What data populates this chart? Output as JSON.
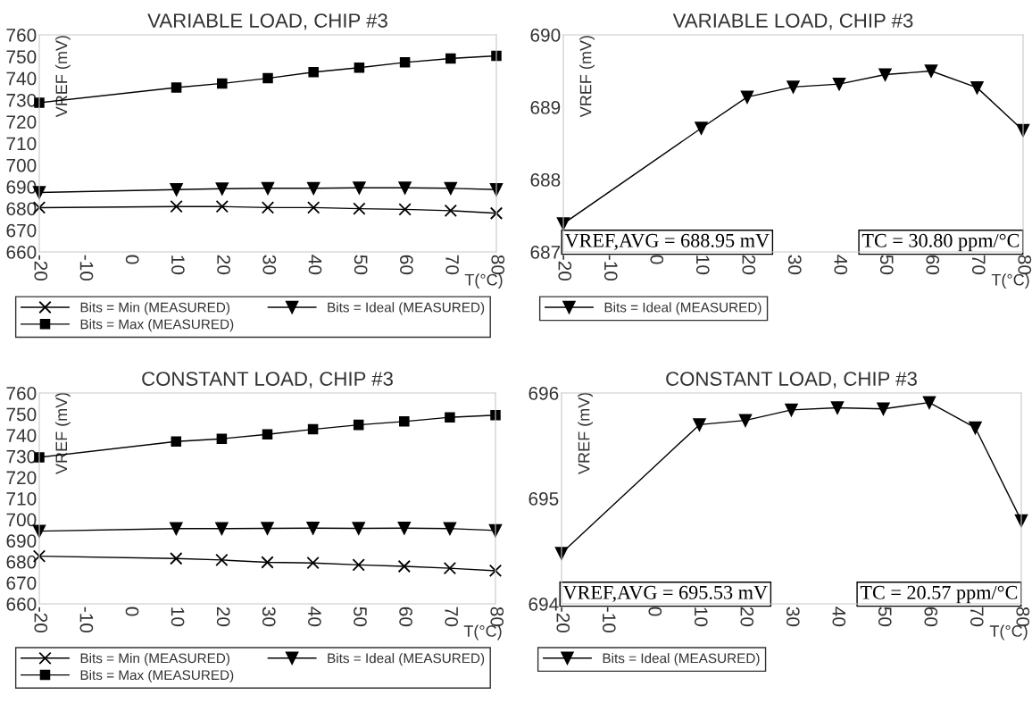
{
  "chart_data": [
    {
      "type": "line",
      "title": "VARIABLE LOAD, CHIP #3",
      "xlabel": "T(°C)",
      "ylabel": "VREF (mV)",
      "x": [
        -20,
        10,
        20,
        30,
        40,
        50,
        60,
        70,
        80
      ],
      "xlim": [
        -20,
        80
      ],
      "xticks": [
        -20,
        -10,
        0,
        10,
        20,
        30,
        40,
        50,
        60,
        70,
        80
      ],
      "ylim": [
        660,
        760
      ],
      "yticks": [
        660,
        670,
        680,
        690,
        700,
        710,
        720,
        730,
        740,
        750,
        760
      ],
      "grid": false,
      "legend": "bottom",
      "series": [
        {
          "name": "Bits = Min (MEASURED)",
          "color": "#000000",
          "marker": "cross",
          "values": [
            680.4,
            680.9,
            680.9,
            680.4,
            680.4,
            679.9,
            679.6,
            679.0,
            677.8
          ]
        },
        {
          "name": "Bits = Ideal (MEASURED)",
          "color": "#000000",
          "marker": "triangle",
          "values": [
            687.4,
            688.7,
            689.1,
            689.3,
            689.3,
            689.5,
            689.5,
            689.3,
            688.7
          ]
        },
        {
          "name": "Bits = Max (MEASURED)",
          "color": "#000000",
          "marker": "square",
          "values": [
            728.7,
            735.7,
            737.6,
            740.0,
            742.8,
            744.9,
            747.3,
            749.1,
            750.3
          ]
        }
      ]
    },
    {
      "type": "line",
      "title": "VARIABLE LOAD, CHIP #3",
      "xlabel": "T(°C)",
      "ylabel": "VREF (mV)",
      "x": [
        -20,
        10,
        20,
        30,
        40,
        50,
        60,
        70,
        80
      ],
      "xlim": [
        -20,
        80
      ],
      "xticks": [
        -20,
        -10,
        0,
        10,
        20,
        30,
        40,
        50,
        60,
        70,
        80
      ],
      "ylim": [
        687,
        690
      ],
      "yticks": [
        687,
        688,
        689,
        690
      ],
      "grid": false,
      "legend": "bottom",
      "annotations": [
        "VREF,AVG = 688.95 mV",
        "TC = 30.80 ppm/°C"
      ],
      "series": [
        {
          "name": "Bits = Ideal (MEASURED)",
          "color": "#000000",
          "marker": "triangle",
          "values": [
            687.39,
            688.71,
            689.14,
            689.28,
            689.32,
            689.45,
            689.5,
            689.27,
            688.68
          ]
        }
      ]
    },
    {
      "type": "line",
      "title": "CONSTANT LOAD, CHIP #3",
      "xlabel": "T(°C)",
      "ylabel": "VREF (mV)",
      "x": [
        -20,
        10,
        20,
        30,
        40,
        50,
        60,
        70,
        80
      ],
      "xlim": [
        -20,
        80
      ],
      "xticks": [
        -20,
        -10,
        0,
        10,
        20,
        30,
        40,
        50,
        60,
        70,
        80
      ],
      "ylim": [
        660,
        760
      ],
      "yticks": [
        660,
        670,
        680,
        690,
        700,
        710,
        720,
        730,
        740,
        750,
        760
      ],
      "grid": false,
      "legend": "bottom",
      "series": [
        {
          "name": "Bits = Min (MEASURED)",
          "color": "#000000",
          "marker": "cross",
          "values": [
            682.6,
            681.5,
            680.8,
            679.7,
            679.4,
            678.5,
            677.8,
            676.9,
            675.7
          ]
        },
        {
          "name": "Bits = Ideal (MEASURED)",
          "color": "#000000",
          "marker": "triangle",
          "values": [
            694.5,
            695.7,
            695.7,
            695.8,
            695.9,
            695.8,
            695.9,
            695.7,
            694.8
          ]
        },
        {
          "name": "Bits = Max (MEASURED)",
          "color": "#000000",
          "marker": "square",
          "values": [
            729.5,
            737.0,
            738.3,
            740.4,
            742.8,
            744.9,
            746.5,
            748.5,
            749.5
          ]
        }
      ]
    },
    {
      "type": "line",
      "title": "CONSTANT LOAD, CHIP #3",
      "xlabel": "T(°C)",
      "ylabel": "VREF (mV)",
      "x": [
        -20,
        10,
        20,
        30,
        40,
        50,
        60,
        70,
        80
      ],
      "xlim": [
        -20,
        80
      ],
      "xticks": [
        -20,
        -10,
        0,
        10,
        20,
        30,
        40,
        50,
        60,
        70,
        80
      ],
      "ylim": [
        694,
        696
      ],
      "yticks": [
        694,
        695,
        696
      ],
      "grid": false,
      "legend": "bottom",
      "annotations": [
        "VREF,AVG = 695.53 mV",
        "TC = 20.57 ppm/°C"
      ],
      "series": [
        {
          "name": "Bits = Ideal (MEASURED)",
          "color": "#000000",
          "marker": "triangle",
          "values": [
            694.48,
            695.7,
            695.74,
            695.84,
            695.86,
            695.85,
            695.91,
            695.67,
            694.79
          ]
        }
      ]
    }
  ]
}
